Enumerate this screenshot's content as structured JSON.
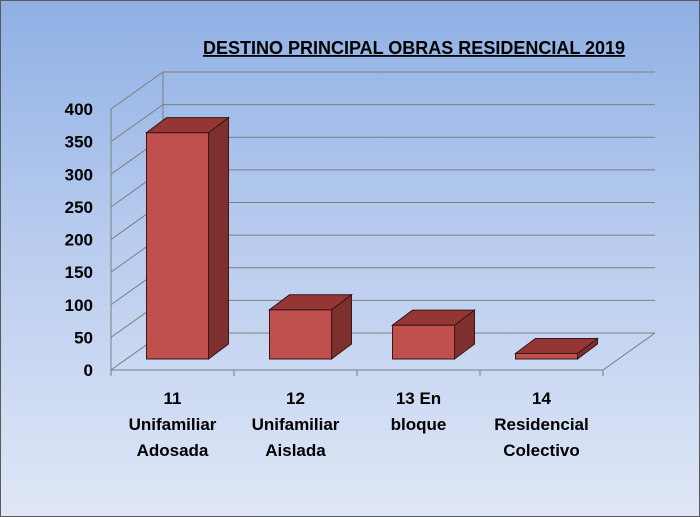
{
  "chart_data": {
    "type": "bar",
    "title": "DESTINO PRINCIPAL OBRAS RESIDENCIAL 2019",
    "xlabel": "",
    "ylabel": "",
    "categories": [
      [
        "11",
        "Unifamiliar",
        "Adosada"
      ],
      [
        "12",
        "Unifamiliar",
        "Aislada"
      ],
      [
        "13 En",
        "bloque"
      ],
      [
        "14",
        "Residencial",
        "Colectivo"
      ]
    ],
    "values": [
      368,
      80,
      55,
      9
    ],
    "ylim": [
      0,
      400
    ],
    "yticks": [
      0,
      50,
      100,
      150,
      200,
      250,
      300,
      350,
      400
    ],
    "grid": true,
    "legend": "none",
    "colors": {
      "bar_front": "#c0504d",
      "bar_side": "#7e302e",
      "bar_top": "#943634"
    }
  }
}
